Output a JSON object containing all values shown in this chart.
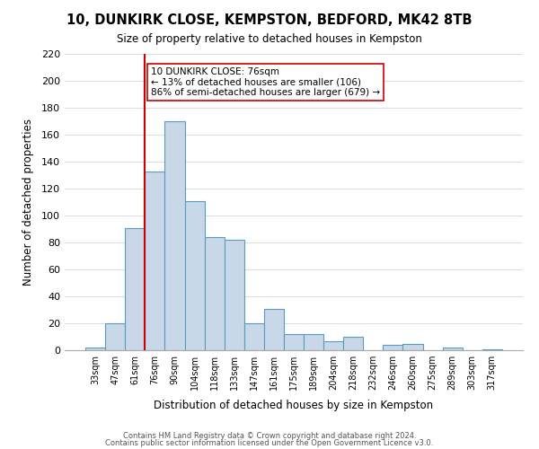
{
  "title": "10, DUNKIRK CLOSE, KEMPSTON, BEDFORD, MK42 8TB",
  "subtitle": "Size of property relative to detached houses in Kempston",
  "xlabel": "Distribution of detached houses by size in Kempston",
  "ylabel": "Number of detached properties",
  "bar_color": "#c8d8e8",
  "bar_edge_color": "#5a9abf",
  "bins": [
    "33sqm",
    "47sqm",
    "61sqm",
    "76sqm",
    "90sqm",
    "104sqm",
    "118sqm",
    "133sqm",
    "147sqm",
    "161sqm",
    "175sqm",
    "189sqm",
    "204sqm",
    "218sqm",
    "232sqm",
    "246sqm",
    "260sqm",
    "275sqm",
    "289sqm",
    "303sqm",
    "317sqm"
  ],
  "values": [
    2,
    20,
    91,
    133,
    170,
    111,
    84,
    82,
    20,
    31,
    12,
    12,
    7,
    10,
    0,
    4,
    5,
    0,
    2,
    0,
    1
  ],
  "ylim": [
    0,
    220
  ],
  "yticks": [
    0,
    20,
    40,
    60,
    80,
    100,
    120,
    140,
    160,
    180,
    200,
    220
  ],
  "property_size": 76,
  "property_label": "10 DUNKIRK CLOSE: 76sqm",
  "annotation_line1": "← 13% of detached houses are smaller (106)",
  "annotation_line2": "86% of semi-detached houses are larger (679) →",
  "vline_color": "#cc0000",
  "annotation_box_edge": "#cc0000",
  "footer1": "Contains HM Land Registry data © Crown copyright and database right 2024.",
  "footer2": "Contains public sector information licensed under the Open Government Licence v3.0.",
  "background_color": "#ffffff",
  "grid_color": "#dddddd"
}
